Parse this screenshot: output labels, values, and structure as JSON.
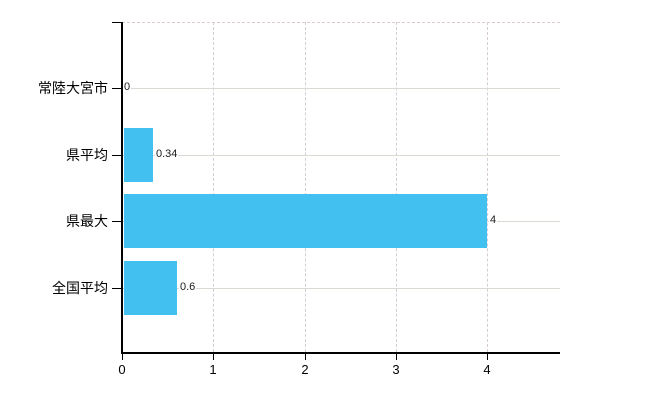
{
  "page": {
    "background_color": "#ffffff"
  },
  "chart_data": {
    "type": "bar",
    "orientation": "horizontal",
    "title": "",
    "xlabel": "",
    "ylabel": "",
    "categories": [
      "常陸大宮市",
      "県平均",
      "県最大",
      "全国平均"
    ],
    "values": [
      0,
      0.34,
      4,
      0.6
    ],
    "value_labels": [
      "0",
      "0.34",
      "4",
      "0.6"
    ],
    "x_ticks": [
      0,
      1,
      2,
      3,
      4
    ],
    "x_tick_labels": [
      "0",
      "1",
      "2",
      "3",
      "4"
    ],
    "xlim": [
      0,
      4.8
    ],
    "grid": true,
    "legend": false,
    "colors": {
      "bar": "#42C1F1",
      "axis": "#000000",
      "h_gridline": "#d6dcd2",
      "v_gridline": "#d5ccd5",
      "top_border": "#dccccc",
      "category_label": "#000000",
      "value_label": "#1a1a1a",
      "tick_label": "#000000"
    }
  }
}
